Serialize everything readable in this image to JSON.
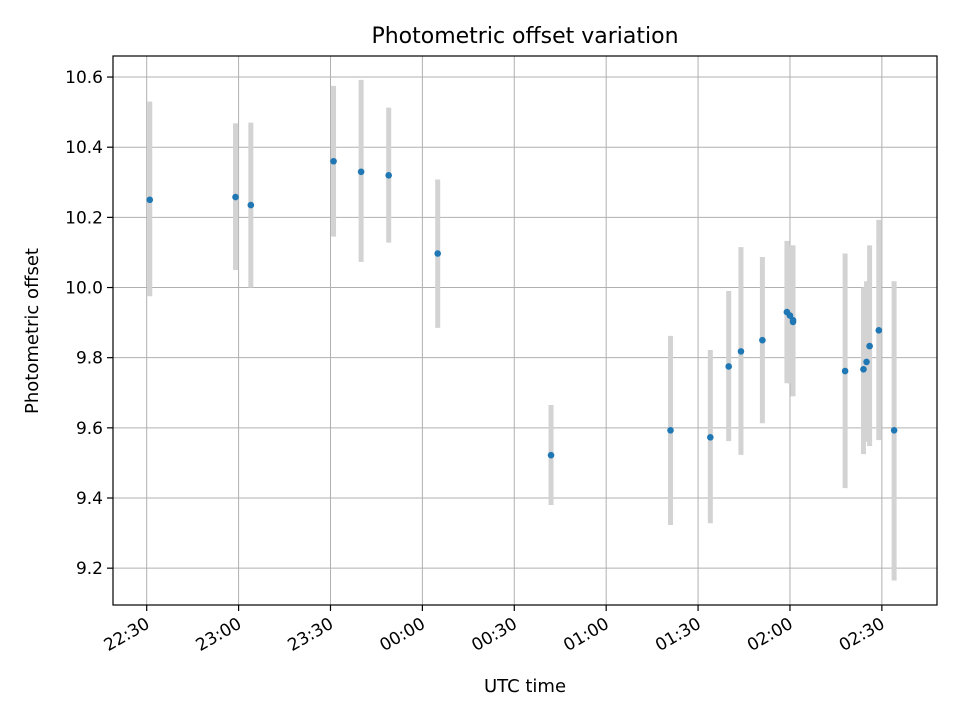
{
  "chart_data": {
    "type": "scatter",
    "title": "Photometric offset variation",
    "xlabel": "UTC time",
    "ylabel": "Photometric offset",
    "x_tick_labels": [
      "22:30",
      "23:00",
      "23:30",
      "00:00",
      "00:30",
      "01:00",
      "01:30",
      "02:00",
      "02:30"
    ],
    "x_ticks": [
      "22:30",
      "23:00",
      "23:30",
      "00:00",
      "00:30",
      "01:00",
      "01:30",
      "02:00",
      "02:30"
    ],
    "y_ticks": [
      9.2,
      9.4,
      9.6,
      9.8,
      10.0,
      10.2,
      10.4,
      10.6
    ],
    "x_range": [
      "22:19",
      "02:48"
    ],
    "ylim": [
      9.095,
      10.66
    ],
    "grid": true,
    "marker_color": "#1f77b4",
    "errorbar_color": "#d3d3d3",
    "points": [
      {
        "x": "22:31",
        "y": 10.25,
        "low": 9.975,
        "high": 10.53
      },
      {
        "x": "22:59",
        "y": 10.258,
        "low": 10.05,
        "high": 10.468
      },
      {
        "x": "23:04",
        "y": 10.235,
        "low": 10.0,
        "high": 10.47
      },
      {
        "x": "23:31",
        "y": 10.36,
        "low": 10.145,
        "high": 10.575
      },
      {
        "x": "23:40",
        "y": 10.33,
        "low": 10.073,
        "high": 10.592
      },
      {
        "x": "23:49",
        "y": 10.32,
        "low": 10.128,
        "high": 10.513
      },
      {
        "x": "00:05",
        "y": 10.097,
        "low": 9.885,
        "high": 10.308
      },
      {
        "x": "00:42",
        "y": 9.522,
        "low": 9.38,
        "high": 9.665
      },
      {
        "x": "01:21",
        "y": 9.593,
        "low": 9.323,
        "high": 9.862
      },
      {
        "x": "01:34",
        "y": 9.573,
        "low": 9.328,
        "high": 9.822
      },
      {
        "x": "01:40",
        "y": 9.775,
        "low": 9.562,
        "high": 9.99
      },
      {
        "x": "01:44",
        "y": 9.818,
        "low": 9.523,
        "high": 10.115
      },
      {
        "x": "01:51",
        "y": 9.85,
        "low": 9.613,
        "high": 10.087
      },
      {
        "x": "01:59",
        "y": 9.93,
        "low": 9.727,
        "high": 10.133
      },
      {
        "x": "02:00",
        "y": 9.92,
        "low": 9.727,
        "high": 10.12
      },
      {
        "x": "02:01",
        "y": 9.907,
        "low": 9.69,
        "high": 10.12
      },
      {
        "x": "02:01",
        "y": 9.902,
        "low": 9.69,
        "high": 10.115
      },
      {
        "x": "02:18",
        "y": 9.762,
        "low": 9.428,
        "high": 10.097
      },
      {
        "x": "02:24",
        "y": 9.767,
        "low": 9.525,
        "high": 10.0
      },
      {
        "x": "02:25",
        "y": 9.788,
        "low": 9.56,
        "high": 10.018
      },
      {
        "x": "02:26",
        "y": 9.833,
        "low": 9.548,
        "high": 10.12
      },
      {
        "x": "02:29",
        "y": 9.878,
        "low": 9.565,
        "high": 10.193
      },
      {
        "x": "02:34",
        "y": 9.593,
        "low": 9.165,
        "high": 10.018
      }
    ]
  }
}
